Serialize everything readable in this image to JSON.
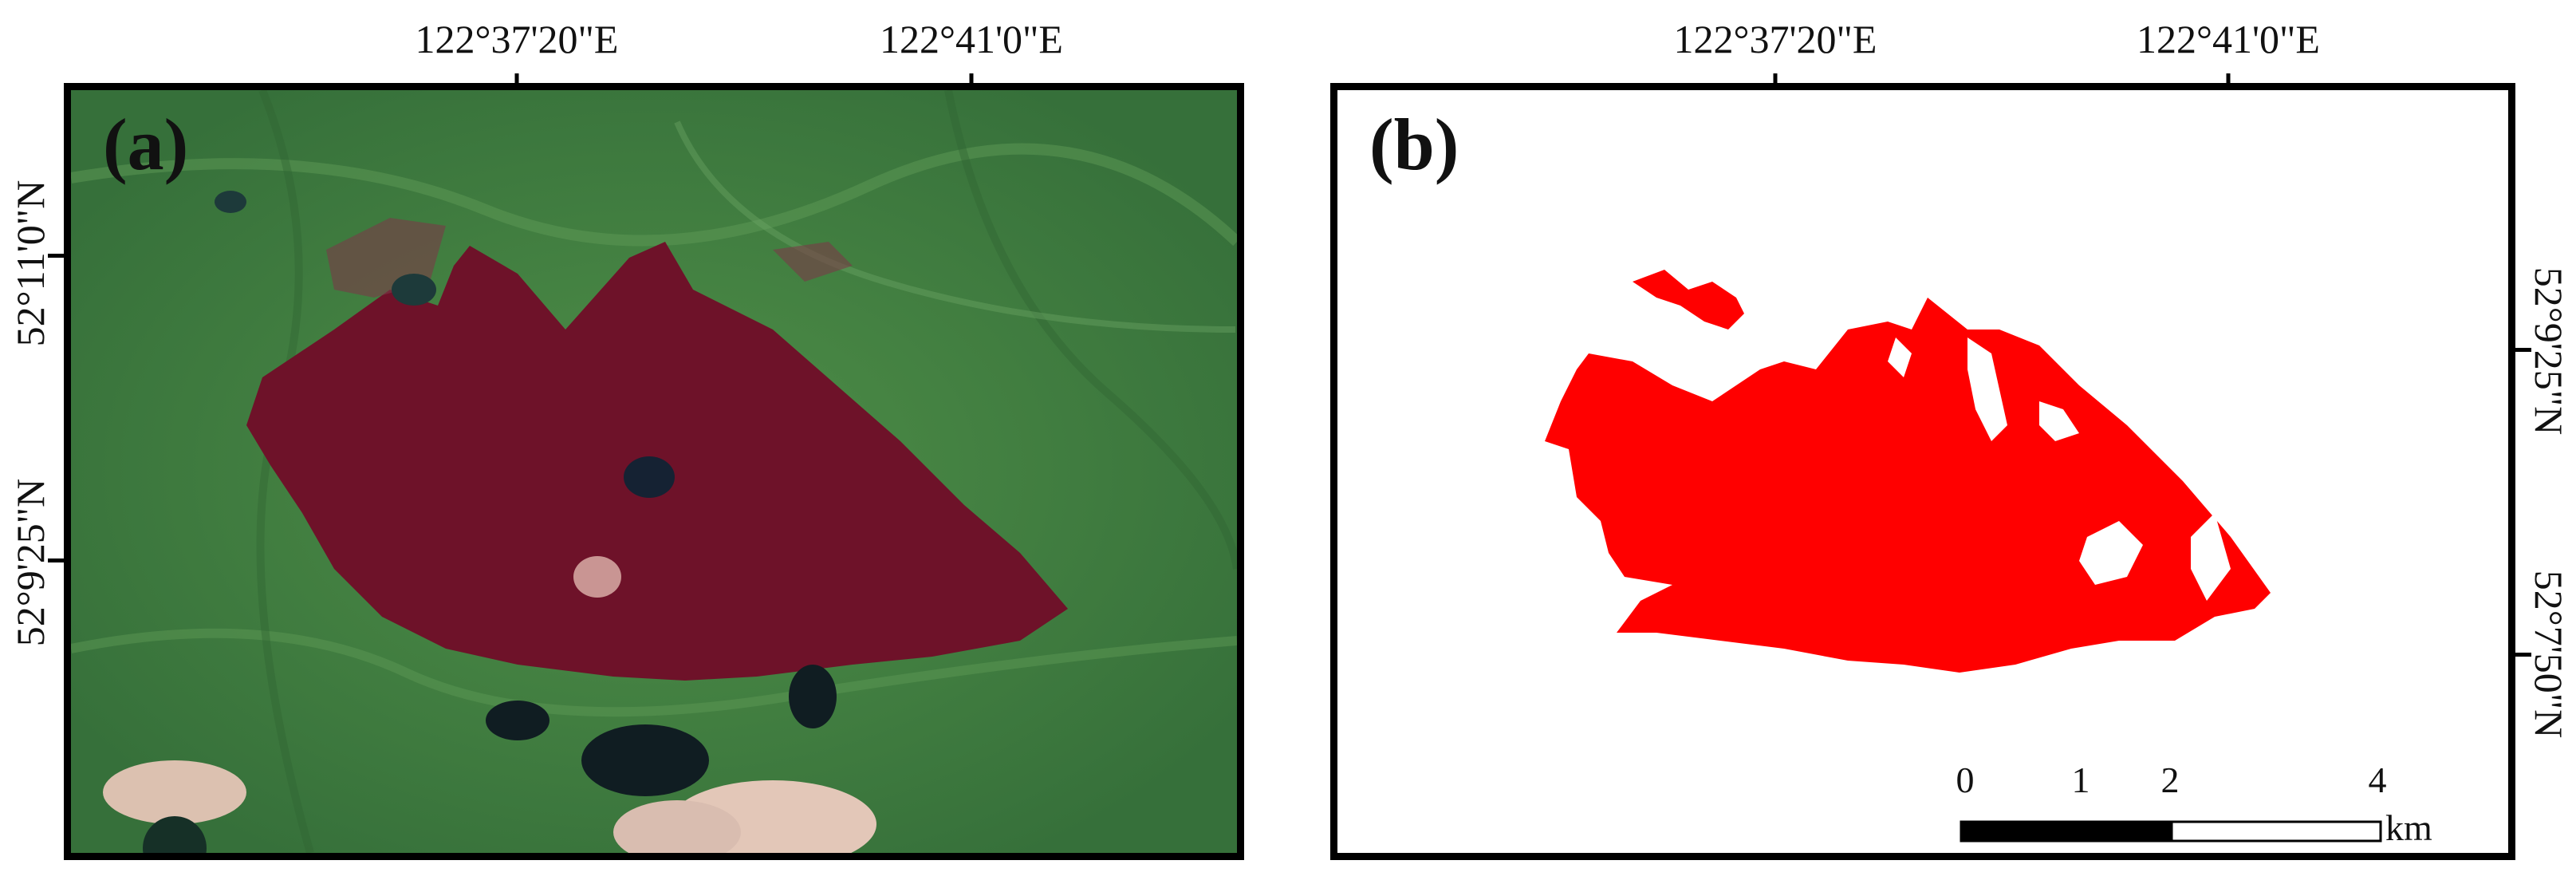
{
  "panel_a": {
    "label": "(a)"
  },
  "panel_b": {
    "label": "(b)"
  },
  "longitude_labels": [
    "122°37'20\"E",
    "122°41'0\"E"
  ],
  "latitude_labels_a": [
    "52°11'0\"N",
    "52°9'25\"N"
  ],
  "latitude_labels_b": [
    "52°9'25\"N",
    "52°7'50\"N"
  ],
  "scale_bar": {
    "ticks": [
      "0",
      "1",
      "2",
      "4"
    ],
    "unit": "km"
  },
  "colors": {
    "burn_scar": "#6e1229",
    "vegetation": "#3e7a3a",
    "burn_mask": "#ff0000",
    "cloud": "#e3c7b8"
  }
}
